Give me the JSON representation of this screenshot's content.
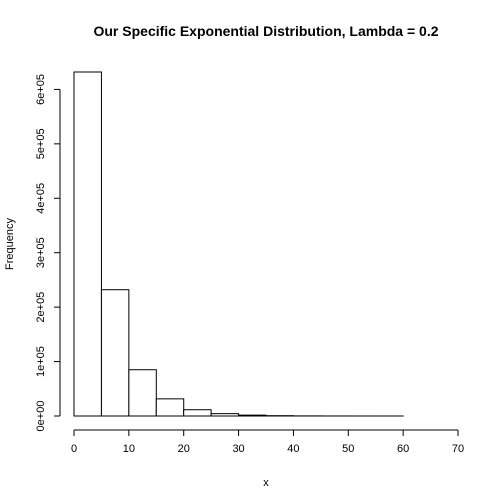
{
  "chart_data": {
    "type": "bar",
    "title": "Our Specific Exponential Distribution, Lambda = 0.2",
    "xlabel": "x",
    "ylabel": "Frequency",
    "bin_edges": [
      0,
      5,
      10,
      15,
      20,
      25,
      30,
      35,
      40,
      45,
      50,
      55,
      60,
      65,
      70
    ],
    "values": [
      632000,
      232000,
      85000,
      31500,
      11500,
      4300,
      1600,
      580,
      210,
      80,
      30,
      11,
      4,
      1
    ],
    "xlim": [
      0,
      70
    ],
    "ylim": [
      0,
      632000
    ],
    "x_ticks": [
      0,
      10,
      20,
      30,
      40,
      50,
      60,
      70
    ],
    "x_tick_labels": [
      "0",
      "10",
      "20",
      "30",
      "40",
      "50",
      "60",
      "70"
    ],
    "y_ticks": [
      0,
      100000,
      200000,
      300000,
      400000,
      500000,
      600000
    ],
    "y_tick_labels": [
      "0e+00",
      "1e+05",
      "2e+05",
      "3e+05",
      "4e+05",
      "5e+05",
      "6e+05"
    ],
    "grid": false
  }
}
